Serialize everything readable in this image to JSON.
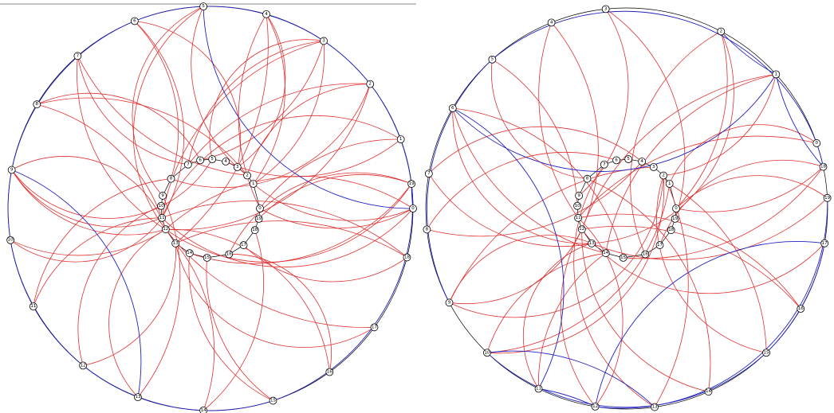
{
  "colors": {
    "red_edge": "#e03030",
    "blue_edge": "#2020c0",
    "ring": "#000000",
    "top_rule": "#888888"
  },
  "diagrams": [
    {
      "outer_labels": [
        "0",
        "1",
        "2",
        "3",
        "4",
        "5",
        "6",
        "7",
        "8",
        "9",
        "10",
        "11",
        "12",
        "13",
        "14",
        "15",
        "16",
        "17",
        "18",
        "19"
      ],
      "inner_labels": [
        "0",
        "1",
        "2",
        "3",
        "4",
        "5",
        "6",
        "7",
        "8",
        "9",
        "10",
        "11",
        "12",
        "13",
        "14",
        "15",
        "16",
        "17",
        "18",
        "19"
      ],
      "red_edges": [
        [
          "o3",
          "i5"
        ],
        [
          "o3",
          "i6"
        ],
        [
          "o3",
          "i7"
        ],
        [
          "o2",
          "i8"
        ],
        [
          "o2",
          "i7"
        ],
        [
          "o1",
          "i4"
        ],
        [
          "o0",
          "i12"
        ],
        [
          "o0",
          "i11"
        ],
        [
          "o4",
          "i0"
        ],
        [
          "o4",
          "i1"
        ],
        [
          "o5",
          "i2"
        ],
        [
          "o6",
          "i3"
        ],
        [
          "o7",
          "i2"
        ],
        [
          "o8",
          "i2"
        ],
        [
          "o9",
          "i11"
        ],
        [
          "o9",
          "i12"
        ],
        [
          "o10",
          "i12"
        ],
        [
          "o11",
          "i11"
        ],
        [
          "o12",
          "i13"
        ],
        [
          "o13",
          "i12"
        ],
        [
          "o14",
          "i13"
        ],
        [
          "o15",
          "i14"
        ],
        [
          "o16",
          "i12"
        ],
        [
          "o17",
          "i13"
        ],
        [
          "o18",
          "i11"
        ],
        [
          "o19",
          "i14"
        ],
        [
          "o19",
          "i16"
        ],
        [
          "o17",
          "i12"
        ],
        [
          "o13",
          "i9"
        ],
        [
          "o11",
          "i8"
        ],
        [
          "o10",
          "i11"
        ],
        [
          "o8",
          "i11"
        ],
        [
          "o7",
          "i12"
        ],
        [
          "o6",
          "i11"
        ],
        [
          "o5",
          "i12"
        ],
        [
          "o4",
          "i13"
        ],
        [
          "o3",
          "i11"
        ],
        [
          "o2",
          "i12"
        ],
        [
          "o1",
          "i11"
        ],
        [
          "o0",
          "i0"
        ],
        [
          "o19",
          "i19"
        ],
        [
          "o18",
          "i17"
        ],
        [
          "o16",
          "i16"
        ],
        [
          "o15",
          "i15"
        ],
        [
          "o14",
          "i18"
        ],
        [
          "o12",
          "i10"
        ],
        [
          "o5",
          "i9"
        ],
        [
          "o6",
          "i8"
        ],
        [
          "o7",
          "i7"
        ],
        [
          "o8",
          "i6"
        ],
        [
          "o9",
          "i5"
        ],
        [
          "o3",
          "i1"
        ],
        [
          "o2",
          "i2"
        ],
        [
          "o4",
          "i3"
        ],
        [
          "o1",
          "i0"
        ],
        [
          "o0",
          "i1"
        ],
        [
          "o9",
          "i12"
        ],
        [
          "o19",
          "i12"
        ],
        [
          "o18",
          "i13"
        ]
      ],
      "blue_edges": [
        [
          "o6",
          "o5"
        ],
        [
          "o5",
          "o3"
        ],
        [
          "o3",
          "o2"
        ],
        [
          "o2",
          "o0"
        ],
        [
          "o0",
          "o19"
        ],
        [
          "o19",
          "o15"
        ],
        [
          "o15",
          "o14"
        ],
        [
          "o14",
          "o12"
        ],
        [
          "o12",
          "o10"
        ],
        [
          "o10",
          "o9"
        ],
        [
          "o9",
          "o6"
        ],
        [
          "o0",
          "o5"
        ],
        [
          "o9",
          "o13"
        ]
      ]
    },
    {
      "outer_labels": [
        "0",
        "1",
        "2",
        "3",
        "4",
        "5",
        "6",
        "7",
        "8",
        "9",
        "10",
        "11",
        "12",
        "13",
        "14",
        "15",
        "16",
        "17",
        "18",
        "19"
      ],
      "inner_labels": [
        "0",
        "1",
        "2",
        "3",
        "4",
        "5",
        "6",
        "7",
        "8",
        "9",
        "10",
        "11",
        "12",
        "13",
        "14",
        "15",
        "16",
        "17",
        "18",
        "19"
      ],
      "red_edges": [
        [
          "o9",
          "i2"
        ],
        [
          "o9",
          "i3"
        ],
        [
          "o9",
          "i12"
        ],
        [
          "o9",
          "i13"
        ],
        [
          "o4",
          "i11"
        ],
        [
          "o4",
          "i12"
        ],
        [
          "o14",
          "i8"
        ],
        [
          "o13",
          "i7"
        ],
        [
          "o13",
          "i2"
        ],
        [
          "o10",
          "i14"
        ],
        [
          "o10",
          "i1"
        ],
        [
          "o15",
          "i2"
        ],
        [
          "o15",
          "i1"
        ],
        [
          "o19",
          "i13"
        ],
        [
          "o19",
          "i0"
        ],
        [
          "o17",
          "i12"
        ],
        [
          "o16",
          "i12"
        ],
        [
          "o12",
          "i12"
        ],
        [
          "o12",
          "i11"
        ],
        [
          "o11",
          "i13"
        ],
        [
          "o6",
          "i14"
        ],
        [
          "o6",
          "i15"
        ],
        [
          "o2",
          "i16"
        ],
        [
          "o2",
          "i13"
        ],
        [
          "o1",
          "i12"
        ],
        [
          "o1",
          "i2"
        ],
        [
          "o18",
          "i17"
        ],
        [
          "o18",
          "i0"
        ],
        [
          "o0",
          "i11"
        ],
        [
          "o3",
          "i19"
        ],
        [
          "o5",
          "i8"
        ],
        [
          "o5",
          "i10"
        ],
        [
          "o8",
          "i4"
        ],
        [
          "o8",
          "i6"
        ],
        [
          "o6",
          "i13"
        ],
        [
          "o11",
          "i14"
        ],
        [
          "o16",
          "i11"
        ],
        [
          "o14",
          "i12"
        ],
        [
          "o10",
          "i2"
        ],
        [
          "o2",
          "i0"
        ],
        [
          "o1",
          "i14"
        ],
        [
          "o3",
          "i9"
        ],
        [
          "o0",
          "i1"
        ],
        [
          "o18",
          "i15"
        ],
        [
          "o7",
          "i13"
        ],
        [
          "o7",
          "i4"
        ]
      ],
      "blue_edges": [
        [
          "o9",
          "o5"
        ],
        [
          "o5",
          "o0"
        ],
        [
          "o0",
          "o18"
        ],
        [
          "o18",
          "o1"
        ],
        [
          "o1",
          "o6"
        ],
        [
          "o6",
          "o11"
        ],
        [
          "o11",
          "o12"
        ],
        [
          "o12",
          "o17"
        ],
        [
          "o17",
          "o15"
        ],
        [
          "o15",
          "o10"
        ],
        [
          "o10",
          "o13"
        ],
        [
          "o19",
          "o12"
        ],
        [
          "o1",
          "o2"
        ]
      ]
    }
  ]
}
